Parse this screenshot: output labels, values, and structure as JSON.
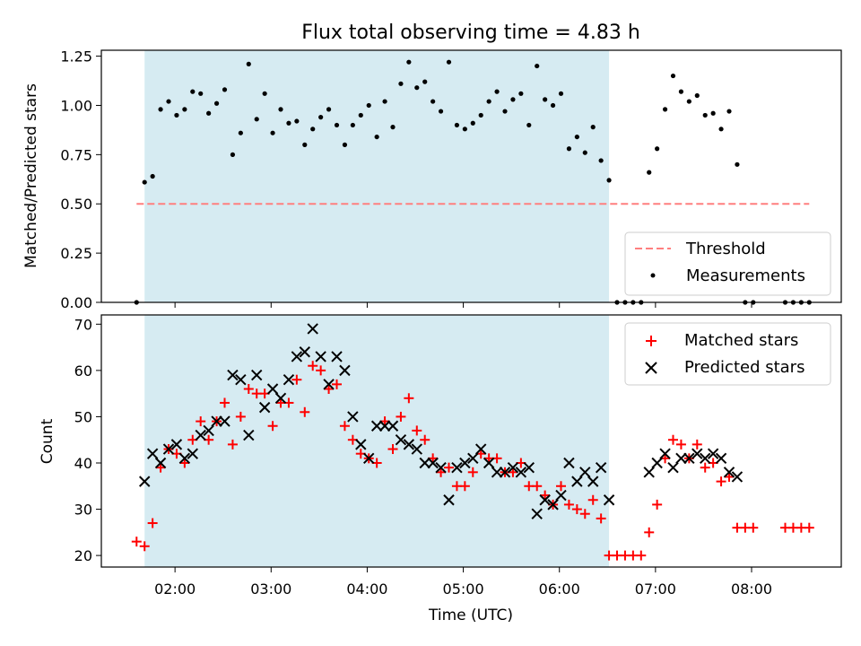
{
  "chart_data": [
    {
      "type": "scatter",
      "title": "Flux total observing time = 4.83 h",
      "xlabel": "",
      "ylabel": "Matched/Predicted stars",
      "ylim": [
        0,
        1.28
      ],
      "yticks": [
        "0.00",
        "0.25",
        "0.50",
        "0.75",
        "1.00",
        "1.25"
      ],
      "shaded_span": [
        "01:41",
        "06:31"
      ],
      "shade_color": "#add8e6",
      "legend_position": "lower right",
      "threshold": {
        "name": "Threshold",
        "value": 0.5,
        "x_range": [
          "01:36",
          "08:36"
        ],
        "color": "#ff7f7f",
        "style": "dashed"
      },
      "series": [
        {
          "name": "Measurements",
          "color": "#000000",
          "marker": "dot",
          "points": [
            [
              "01:36",
              0.0
            ],
            [
              "01:41",
              0.61
            ],
            [
              "01:46",
              0.64
            ],
            [
              "01:51",
              0.98
            ],
            [
              "01:56",
              1.02
            ],
            [
              "02:01",
              0.95
            ],
            [
              "02:06",
              0.98
            ],
            [
              "02:11",
              1.07
            ],
            [
              "02:16",
              1.06
            ],
            [
              "02:21",
              0.96
            ],
            [
              "02:26",
              1.01
            ],
            [
              "02:31",
              1.08
            ],
            [
              "02:36",
              0.75
            ],
            [
              "02:41",
              0.86
            ],
            [
              "02:46",
              1.21
            ],
            [
              "02:51",
              0.93
            ],
            [
              "02:56",
              1.06
            ],
            [
              "03:01",
              0.86
            ],
            [
              "03:06",
              0.98
            ],
            [
              "03:11",
              0.91
            ],
            [
              "03:16",
              0.92
            ],
            [
              "03:21",
              0.8
            ],
            [
              "03:26",
              0.88
            ],
            [
              "03:31",
              0.94
            ],
            [
              "03:36",
              0.98
            ],
            [
              "03:41",
              0.9
            ],
            [
              "03:46",
              0.8
            ],
            [
              "03:51",
              0.9
            ],
            [
              "03:56",
              0.95
            ],
            [
              "04:01",
              1.0
            ],
            [
              "04:06",
              0.84
            ],
            [
              "04:11",
              1.02
            ],
            [
              "04:16",
              0.89
            ],
            [
              "04:21",
              1.11
            ],
            [
              "04:26",
              1.22
            ],
            [
              "04:31",
              1.09
            ],
            [
              "04:36",
              1.12
            ],
            [
              "04:41",
              1.02
            ],
            [
              "04:46",
              0.97
            ],
            [
              "04:51",
              1.22
            ],
            [
              "04:56",
              0.9
            ],
            [
              "05:01",
              0.88
            ],
            [
              "05:06",
              0.91
            ],
            [
              "05:11",
              0.95
            ],
            [
              "05:16",
              1.02
            ],
            [
              "05:21",
              1.07
            ],
            [
              "05:26",
              0.97
            ],
            [
              "05:31",
              1.03
            ],
            [
              "05:36",
              1.06
            ],
            [
              "05:41",
              0.9
            ],
            [
              "05:46",
              1.2
            ],
            [
              "05:51",
              1.03
            ],
            [
              "05:56",
              1.0
            ],
            [
              "06:01",
              1.06
            ],
            [
              "06:06",
              0.78
            ],
            [
              "06:11",
              0.84
            ],
            [
              "06:16",
              0.76
            ],
            [
              "06:21",
              0.89
            ],
            [
              "06:26",
              0.72
            ],
            [
              "06:31",
              0.62
            ],
            [
              "06:36",
              0.0
            ],
            [
              "06:41",
              0.0
            ],
            [
              "06:46",
              0.0
            ],
            [
              "06:51",
              0.0
            ],
            [
              "06:56",
              0.66
            ],
            [
              "07:01",
              0.78
            ],
            [
              "07:06",
              0.98
            ],
            [
              "07:11",
              1.15
            ],
            [
              "07:16",
              1.07
            ],
            [
              "07:21",
              1.02
            ],
            [
              "07:26",
              1.05
            ],
            [
              "07:31",
              0.95
            ],
            [
              "07:36",
              0.96
            ],
            [
              "07:41",
              0.88
            ],
            [
              "07:46",
              0.97
            ],
            [
              "07:51",
              0.7
            ],
            [
              "07:56",
              0.0
            ],
            [
              "08:01",
              0.0
            ],
            [
              "08:21",
              0.0
            ],
            [
              "08:26",
              0.0
            ],
            [
              "08:31",
              0.0
            ],
            [
              "08:36",
              0.0
            ]
          ]
        }
      ]
    },
    {
      "type": "scatter",
      "title": "",
      "xlabel": "Time (UTC)",
      "ylabel": "Count",
      "ylim": [
        17.5,
        72
      ],
      "yticks": [
        "20",
        "30",
        "40",
        "50",
        "60",
        "70"
      ],
      "xlim": [
        "01:14",
        "08:56"
      ],
      "xticks": [
        "02:00",
        "03:00",
        "04:00",
        "05:00",
        "06:00",
        "07:00",
        "08:00"
      ],
      "shaded_span": [
        "01:41",
        "06:31"
      ],
      "shade_color": "#add8e6",
      "legend_position": "upper right",
      "series": [
        {
          "name": "Matched stars",
          "color": "#ff0000",
          "marker": "plus",
          "points": [
            [
              "01:36",
              23
            ],
            [
              "01:41",
              22
            ],
            [
              "01:46",
              27
            ],
            [
              "01:51",
              39
            ],
            [
              "01:56",
              43
            ],
            [
              "02:01",
              42
            ],
            [
              "02:06",
              40
            ],
            [
              "02:11",
              45
            ],
            [
              "02:16",
              49
            ],
            [
              "02:21",
              45
            ],
            [
              "02:26",
              49
            ],
            [
              "02:31",
              53
            ],
            [
              "02:36",
              44
            ],
            [
              "02:41",
              50
            ],
            [
              "02:46",
              56
            ],
            [
              "02:51",
              55
            ],
            [
              "02:56",
              55
            ],
            [
              "03:01",
              48
            ],
            [
              "03:06",
              53
            ],
            [
              "03:11",
              53
            ],
            [
              "03:16",
              58
            ],
            [
              "03:21",
              51
            ],
            [
              "03:26",
              61
            ],
            [
              "03:31",
              60
            ],
            [
              "03:36",
              56
            ],
            [
              "03:41",
              57
            ],
            [
              "03:46",
              48
            ],
            [
              "03:51",
              45
            ],
            [
              "03:56",
              42
            ],
            [
              "04:01",
              41
            ],
            [
              "04:06",
              40
            ],
            [
              "04:11",
              49
            ],
            [
              "04:16",
              43
            ],
            [
              "04:21",
              50
            ],
            [
              "04:26",
              54
            ],
            [
              "04:31",
              47
            ],
            [
              "04:36",
              45
            ],
            [
              "04:41",
              41
            ],
            [
              "04:46",
              38
            ],
            [
              "04:51",
              39
            ],
            [
              "04:56",
              35
            ],
            [
              "05:01",
              35
            ],
            [
              "05:06",
              38
            ],
            [
              "05:11",
              42
            ],
            [
              "05:16",
              41
            ],
            [
              "05:21",
              41
            ],
            [
              "05:26",
              38
            ],
            [
              "05:31",
              38
            ],
            [
              "05:36",
              40
            ],
            [
              "05:41",
              35
            ],
            [
              "05:46",
              35
            ],
            [
              "05:51",
              33
            ],
            [
              "05:56",
              31
            ],
            [
              "06:01",
              35
            ],
            [
              "06:06",
              31
            ],
            [
              "06:11",
              30
            ],
            [
              "06:16",
              29
            ],
            [
              "06:21",
              32
            ],
            [
              "06:26",
              28
            ],
            [
              "06:31",
              20
            ],
            [
              "06:36",
              20
            ],
            [
              "06:41",
              20
            ],
            [
              "06:46",
              20
            ],
            [
              "06:51",
              20
            ],
            [
              "06:56",
              25
            ],
            [
              "07:01",
              31
            ],
            [
              "07:06",
              41
            ],
            [
              "07:11",
              45
            ],
            [
              "07:16",
              44
            ],
            [
              "07:21",
              41
            ],
            [
              "07:26",
              44
            ],
            [
              "07:31",
              39
            ],
            [
              "07:36",
              40
            ],
            [
              "07:41",
              36
            ],
            [
              "07:46",
              37
            ],
            [
              "07:51",
              26
            ],
            [
              "07:56",
              26
            ],
            [
              "08:01",
              26
            ],
            [
              "08:21",
              26
            ],
            [
              "08:26",
              26
            ],
            [
              "08:31",
              26
            ],
            [
              "08:36",
              26
            ]
          ]
        },
        {
          "name": "Predicted stars",
          "color": "#000000",
          "marker": "x",
          "points": [
            [
              "01:41",
              36
            ],
            [
              "01:46",
              42
            ],
            [
              "01:51",
              40
            ],
            [
              "01:56",
              43
            ],
            [
              "02:01",
              44
            ],
            [
              "02:06",
              41
            ],
            [
              "02:11",
              42
            ],
            [
              "02:16",
              46
            ],
            [
              "02:21",
              47
            ],
            [
              "02:26",
              49
            ],
            [
              "02:31",
              49
            ],
            [
              "02:36",
              59
            ],
            [
              "02:41",
              58
            ],
            [
              "02:46",
              46
            ],
            [
              "02:51",
              59
            ],
            [
              "02:56",
              52
            ],
            [
              "03:01",
              56
            ],
            [
              "03:06",
              54
            ],
            [
              "03:11",
              58
            ],
            [
              "03:16",
              63
            ],
            [
              "03:21",
              64
            ],
            [
              "03:26",
              69
            ],
            [
              "03:31",
              63
            ],
            [
              "03:36",
              57
            ],
            [
              "03:41",
              63
            ],
            [
              "03:46",
              60
            ],
            [
              "03:51",
              50
            ],
            [
              "03:56",
              44
            ],
            [
              "04:01",
              41
            ],
            [
              "04:06",
              48
            ],
            [
              "04:11",
              48
            ],
            [
              "04:16",
              48
            ],
            [
              "04:21",
              45
            ],
            [
              "04:26",
              44
            ],
            [
              "04:31",
              43
            ],
            [
              "04:36",
              40
            ],
            [
              "04:41",
              40
            ],
            [
              "04:46",
              39
            ],
            [
              "04:51",
              32
            ],
            [
              "04:56",
              39
            ],
            [
              "05:01",
              40
            ],
            [
              "05:06",
              41
            ],
            [
              "05:11",
              43
            ],
            [
              "05:16",
              40
            ],
            [
              "05:21",
              38
            ],
            [
              "05:26",
              38
            ],
            [
              "05:31",
              39
            ],
            [
              "05:36",
              38
            ],
            [
              "05:41",
              39
            ],
            [
              "05:46",
              29
            ],
            [
              "05:51",
              32
            ],
            [
              "05:56",
              31
            ],
            [
              "06:01",
              33
            ],
            [
              "06:06",
              40
            ],
            [
              "06:11",
              36
            ],
            [
              "06:16",
              38
            ],
            [
              "06:21",
              36
            ],
            [
              "06:26",
              39
            ],
            [
              "06:31",
              32
            ],
            [
              "06:56",
              38
            ],
            [
              "07:01",
              40
            ],
            [
              "07:06",
              42
            ],
            [
              "07:11",
              39
            ],
            [
              "07:16",
              41
            ],
            [
              "07:21",
              41
            ],
            [
              "07:26",
              42
            ],
            [
              "07:31",
              41
            ],
            [
              "07:36",
              42
            ],
            [
              "07:41",
              41
            ],
            [
              "07:46",
              38
            ],
            [
              "07:51",
              37
            ]
          ]
        }
      ]
    }
  ]
}
